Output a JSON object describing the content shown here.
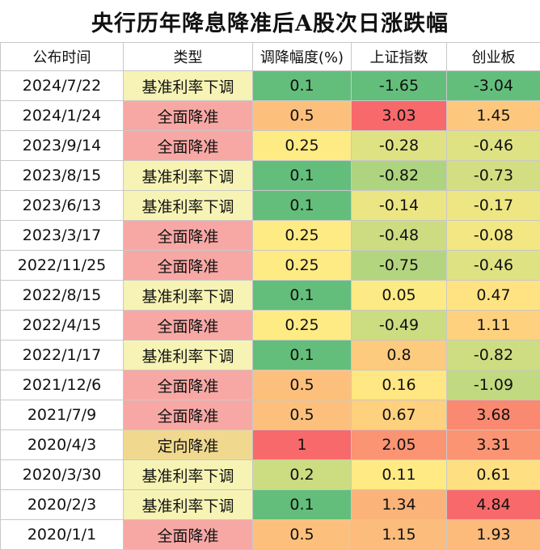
{
  "chart_data": {
    "type": "table",
    "title": "央行历年降息降准后A股次日涨跌幅",
    "columns": [
      "公布时间",
      "类型",
      "调降幅度(%)",
      "上证指数",
      "创业板"
    ],
    "rows": [
      [
        "2024/7/22",
        "基准利率下调",
        "0.1",
        "-1.65",
        "-3.04"
      ],
      [
        "2024/1/24",
        "全面降准",
        "0.5",
        "3.03",
        "1.45"
      ],
      [
        "2023/9/14",
        "全面降准",
        "0.25",
        "-0.28",
        "-0.46"
      ],
      [
        "2023/8/15",
        "基准利率下调",
        "0.1",
        "-0.82",
        "-0.73"
      ],
      [
        "2023/6/13",
        "基准利率下调",
        "0.1",
        "-0.14",
        "-0.17"
      ],
      [
        "2023/3/17",
        "全面降准",
        "0.25",
        "-0.48",
        "-0.08"
      ],
      [
        "2022/11/25",
        "全面降准",
        "0.25",
        "-0.75",
        "-0.46"
      ],
      [
        "2022/8/15",
        "基准利率下调",
        "0.1",
        "0.05",
        "0.47"
      ],
      [
        "2022/4/15",
        "全面降准",
        "0.25",
        "-0.49",
        "1.11"
      ],
      [
        "2022/1/17",
        "基准利率下调",
        "0.1",
        "0.8",
        "-0.82"
      ],
      [
        "2021/12/6",
        "全面降准",
        "0.5",
        "0.16",
        "-1.09"
      ],
      [
        "2021/7/9",
        "全面降准",
        "0.5",
        "0.67",
        "3.68"
      ],
      [
        "2020/4/3",
        "定向降准",
        "1",
        "2.05",
        "3.31"
      ],
      [
        "2020/3/30",
        "基准利率下调",
        "0.2",
        "0.11",
        "0.61"
      ],
      [
        "2020/2/3",
        "基准利率下调",
        "0.1",
        "1.34",
        "4.84"
      ],
      [
        "2020/1/1",
        "全面降准",
        "0.5",
        "1.15",
        "1.93"
      ]
    ],
    "type_colors": {
      "基准利率下调": "#f6f3b5",
      "全面降准": "#f7a8a5",
      "定向降准": "#f0d98e"
    }
  }
}
